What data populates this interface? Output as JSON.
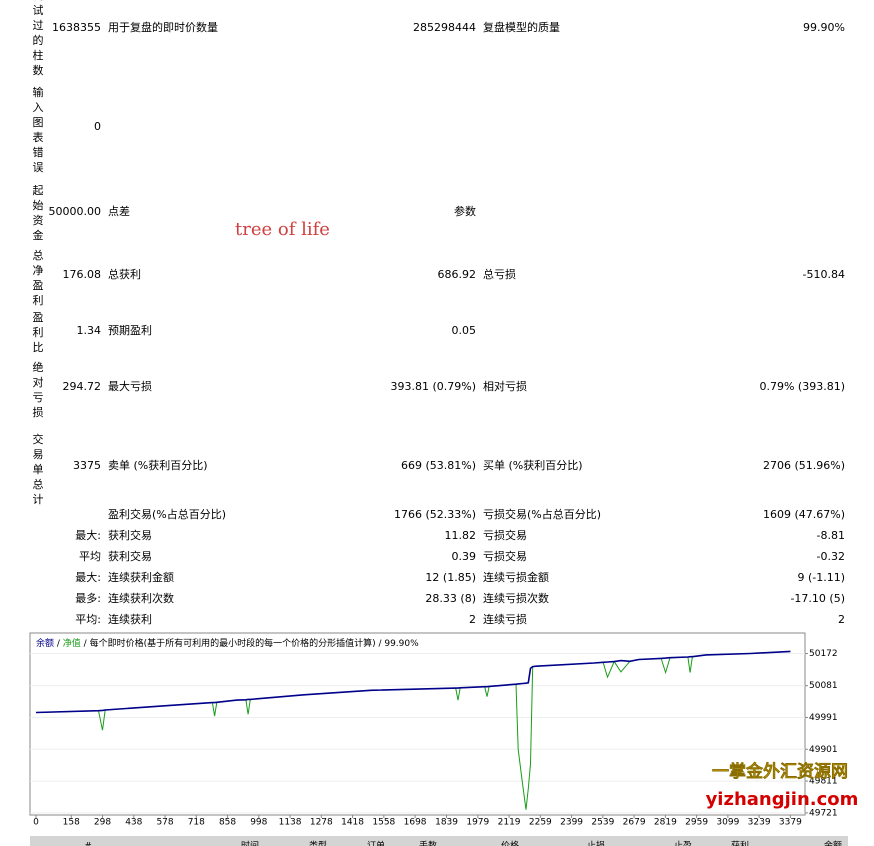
{
  "report": {
    "rows": [
      {
        "label": "测试过的柱数",
        "value": "1638355",
        "items": [
          {
            "label": "用于复盘的即时价数量",
            "value": "285298444"
          },
          {
            "label": "复盘模型的质量",
            "value": "99.90%"
          }
        ]
      },
      {
        "label": "输入图表错误",
        "value": "0",
        "items": []
      },
      {
        "label": "起始资金",
        "value": "50000.00",
        "items": [
          {
            "label": "点差",
            "value": "参数"
          }
        ]
      },
      {
        "label": "总净盈利",
        "value": "176.08",
        "items": [
          {
            "label": "总获利",
            "value": "686.92"
          },
          {
            "label": "总亏损",
            "value": "-510.84"
          }
        ]
      },
      {
        "label": "盈利比",
        "value": "1.34",
        "items": [
          {
            "label": "预期盈利",
            "value": "0.05"
          }
        ]
      },
      {
        "label": "绝对亏损",
        "value": "294.72",
        "items": [
          {
            "label": "最大亏损",
            "value": "393.81 (0.79%)"
          },
          {
            "label": "相对亏损",
            "value": "0.79% (393.81)"
          }
        ]
      },
      {
        "label": "交易单总计",
        "value": "3375",
        "items": [
          {
            "label": "卖单 (%获利百分比)",
            "value": "669 (53.81%)"
          },
          {
            "label": "买单 (%获利百分比)",
            "value": "2706 (51.96%)"
          }
        ]
      }
    ],
    "watermark": "tree of life",
    "details": [
      {
        "items": [
          {
            "label": "盈利交易(%占总百分比)",
            "value": "1766 (52.33%)"
          },
          {
            "label": "亏损交易(%占总百分比)",
            "value": "1609 (47.67%)"
          }
        ]
      },
      {
        "prefix": "最大:",
        "items": [
          {
            "label": "获利交易",
            "value": "11.82"
          },
          {
            "label": "亏损交易",
            "value": "-8.81"
          }
        ]
      },
      {
        "prefix": "平均",
        "items": [
          {
            "label": "获利交易",
            "value": "0.39"
          },
          {
            "label": "亏损交易",
            "value": "-0.32"
          }
        ]
      },
      {
        "prefix": "最大:",
        "items": [
          {
            "label": "连续获利金额",
            "value": "12 (1.85)"
          },
          {
            "label": "连续亏损金额",
            "value": "9 (-1.11)"
          }
        ]
      },
      {
        "prefix": "最多:",
        "items": [
          {
            "label": "连续获利次数",
            "value": "28.33 (8)"
          },
          {
            "label": "连续亏损次数",
            "value": "-17.10 (5)"
          }
        ]
      },
      {
        "prefix": "平均:",
        "items": [
          {
            "label": "连续获利",
            "value": "2"
          },
          {
            "label": "连续亏损",
            "value": "2"
          }
        ]
      }
    ]
  },
  "chart_data": {
    "type": "line",
    "subtitle": "每个即时价格(基于所有可利用的最小时段的每一个价格的分形插值计算)",
    "quality": "99.90%",
    "separator": " / ",
    "x": [
      0,
      280,
      298,
      310,
      600,
      790,
      800,
      810,
      900,
      940,
      950,
      960,
      1200,
      1500,
      1880,
      1890,
      1900,
      2010,
      2020,
      2030,
      2150,
      2160,
      2180,
      2195,
      2205,
      2215,
      2225,
      2240,
      2500,
      2540,
      2560,
      2590,
      2620,
      2660,
      2700,
      2800,
      2820,
      2840,
      2920,
      2930,
      2940,
      3000,
      3200,
      3379
    ],
    "series": [
      {
        "name": "余额",
        "color": "#00008b",
        "values": [
          50005,
          50010,
          50011,
          50012,
          50025,
          50033,
          50033,
          50034,
          50040,
          50041,
          50042,
          50042,
          50055,
          50068,
          50074,
          50074,
          50075,
          50078,
          50078,
          50079,
          50085,
          50086,
          50087,
          50088,
          50089,
          50130,
          50135,
          50136,
          50145,
          50147,
          50148,
          50149,
          50152,
          50150,
          50155,
          50158,
          50159,
          50160,
          50162,
          50163,
          50163,
          50168,
          50172,
          50178
        ]
      },
      {
        "name": "净值",
        "color": "#1a9c1a",
        "values": [
          50005,
          50010,
          49955,
          50012,
          50025,
          50033,
          49995,
          50034,
          50040,
          50041,
          50000,
          50042,
          50055,
          50068,
          50074,
          50040,
          50075,
          50078,
          50050,
          50079,
          50085,
          49900,
          49800,
          49730,
          49790,
          49860,
          50135,
          50136,
          50145,
          50147,
          50105,
          50149,
          50120,
          50150,
          50155,
          50158,
          50118,
          50160,
          50162,
          50118,
          50163,
          50168,
          50172,
          50178
        ]
      }
    ],
    "xlim": [
      0,
      3440
    ],
    "ylim": [
      49715,
      50230
    ],
    "xticks": [
      0,
      158,
      298,
      438,
      578,
      718,
      858,
      998,
      1138,
      1278,
      1418,
      1558,
      1698,
      1839,
      1979,
      2119,
      2259,
      2399,
      2539,
      2679,
      2819,
      2959,
      3099,
      3239,
      3379
    ],
    "yticks": [
      49721,
      49811,
      49901,
      49991,
      50081,
      50172
    ],
    "grid": true
  },
  "table_header": [
    "#",
    "时间",
    "类型",
    "订单",
    "手数",
    "价格",
    "止损",
    "止盈",
    "获利",
    "余额"
  ],
  "site_watermark": [
    "一掌金外汇资源网",
    "yizhangjin.com"
  ]
}
